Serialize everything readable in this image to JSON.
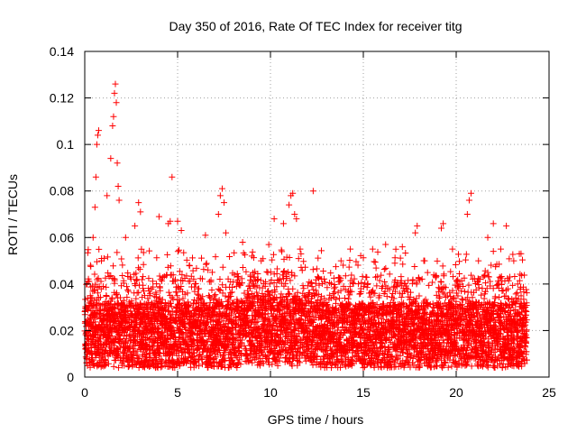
{
  "chart_data": {
    "type": "scatter",
    "title": "Day 350 of 2016, Rate Of TEC Index for receiver titg",
    "xlabel": "GPS time / hours",
    "ylabel": "ROTI / TECUs",
    "xlim": [
      0,
      25
    ],
    "ylim": [
      0,
      0.14
    ],
    "xticks": [
      0,
      5,
      10,
      15,
      20,
      25
    ],
    "yticks": [
      0,
      0.02,
      0.04,
      0.06,
      0.08,
      0.1,
      0.12,
      0.14
    ],
    "xtick_labels": [
      "0",
      "5",
      "10",
      "15",
      "20",
      "25"
    ],
    "ytick_labels": [
      "0",
      "0.02",
      "0.04",
      "0.06",
      "0.08",
      "0.1",
      "0.12",
      "0.14"
    ],
    "grid": true,
    "marker": "plus",
    "color": "#ff0000",
    "series": [
      {
        "name": "ROTI",
        "points": [
          [
            0.3,
            0.035
          ],
          [
            0.45,
            0.06
          ],
          [
            0.55,
            0.073
          ],
          [
            0.6,
            0.086
          ],
          [
            0.65,
            0.1
          ],
          [
            0.7,
            0.104
          ],
          [
            0.75,
            0.106
          ],
          [
            0.9,
            0.05
          ],
          [
            1.2,
            0.078
          ],
          [
            1.4,
            0.094
          ],
          [
            1.5,
            0.108
          ],
          [
            1.55,
            0.112
          ],
          [
            1.6,
            0.122
          ],
          [
            1.65,
            0.126
          ],
          [
            1.7,
            0.118
          ],
          [
            1.75,
            0.092
          ],
          [
            1.8,
            0.082
          ],
          [
            1.85,
            0.076
          ],
          [
            2.2,
            0.06
          ],
          [
            2.7,
            0.065
          ],
          [
            2.9,
            0.075
          ],
          [
            3.0,
            0.071
          ],
          [
            4.0,
            0.069
          ],
          [
            4.5,
            0.066
          ],
          [
            4.6,
            0.067
          ],
          [
            4.7,
            0.086
          ],
          [
            5.0,
            0.067
          ],
          [
            5.2,
            0.063
          ],
          [
            6.5,
            0.061
          ],
          [
            7.2,
            0.07
          ],
          [
            7.3,
            0.078
          ],
          [
            7.4,
            0.081
          ],
          [
            7.5,
            0.075
          ],
          [
            7.6,
            0.062
          ],
          [
            8.5,
            0.058
          ],
          [
            9.0,
            0.052
          ],
          [
            9.5,
            0.05
          ],
          [
            10.2,
            0.068
          ],
          [
            10.7,
            0.066
          ],
          [
            11.0,
            0.074
          ],
          [
            11.1,
            0.078
          ],
          [
            11.2,
            0.079
          ],
          [
            11.3,
            0.07
          ],
          [
            11.4,
            0.068
          ],
          [
            11.6,
            0.055
          ],
          [
            12.3,
            0.08
          ],
          [
            13.8,
            0.05
          ],
          [
            14.3,
            0.055
          ],
          [
            15.5,
            0.055
          ],
          [
            16.2,
            0.057
          ],
          [
            17.1,
            0.056
          ],
          [
            17.8,
            0.062
          ],
          [
            17.9,
            0.065
          ],
          [
            18.3,
            0.05
          ],
          [
            19.2,
            0.064
          ],
          [
            19.3,
            0.066
          ],
          [
            19.8,
            0.055
          ],
          [
            20.6,
            0.07
          ],
          [
            20.7,
            0.076
          ],
          [
            20.8,
            0.079
          ],
          [
            21.2,
            0.05
          ],
          [
            21.7,
            0.06
          ],
          [
            22.0,
            0.066
          ],
          [
            22.4,
            0.055
          ],
          [
            22.7,
            0.065
          ],
          [
            23.1,
            0.05
          ],
          [
            23.4,
            0.053
          ],
          [
            23.7,
            0.03
          ]
        ]
      }
    ]
  }
}
